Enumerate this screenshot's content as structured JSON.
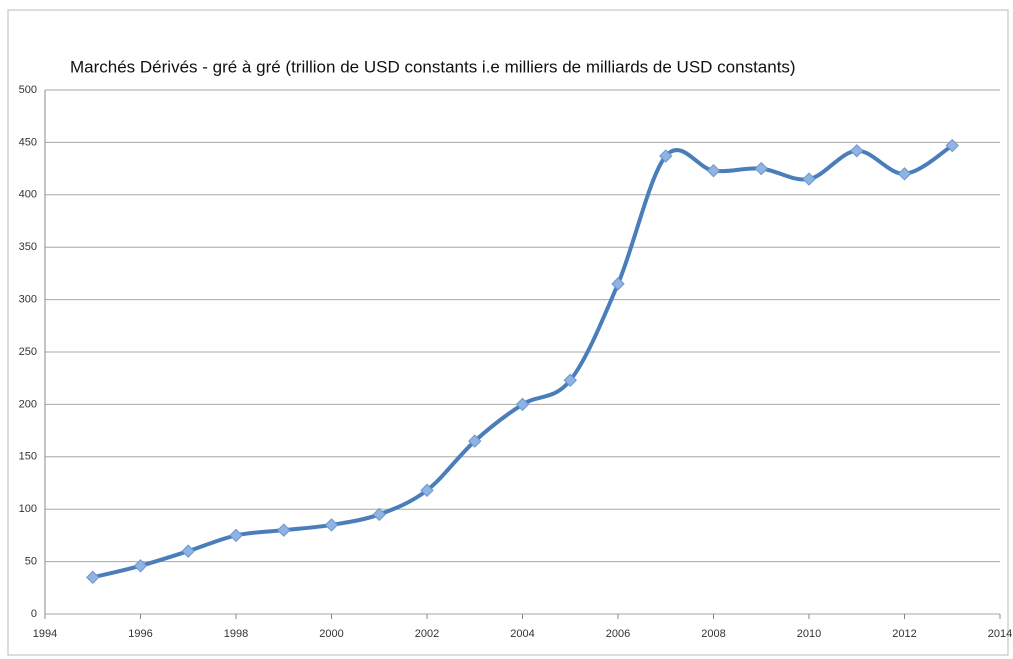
{
  "chart_data": {
    "type": "line",
    "title": "Marchés Dérivés - gré à gré (trillion de USD constants i.e milliers de milliards de USD constants)",
    "x": [
      1995,
      1996,
      1997,
      1998,
      1999,
      2000,
      2001,
      2002,
      2003,
      2004,
      2005,
      2006,
      2007,
      2008,
      2009,
      2010,
      2011,
      2012,
      2013
    ],
    "series": [
      {
        "name": "Marchés Dérivés",
        "color": "#4a7ebb",
        "values": [
          35,
          46,
          60,
          75,
          80,
          85,
          95,
          118,
          165,
          200,
          223,
          315,
          437,
          423,
          425,
          415,
          442,
          420,
          447
        ]
      }
    ],
    "xlim": [
      1994,
      2014
    ],
    "xticks": [
      1994,
      1996,
      1998,
      2000,
      2002,
      2004,
      2006,
      2008,
      2010,
      2012,
      2014
    ],
    "ylim": [
      0,
      500
    ],
    "yticks": [
      0,
      50,
      100,
      150,
      200,
      250,
      300,
      350,
      400,
      450,
      500
    ],
    "grid": true,
    "smooth": true
  }
}
